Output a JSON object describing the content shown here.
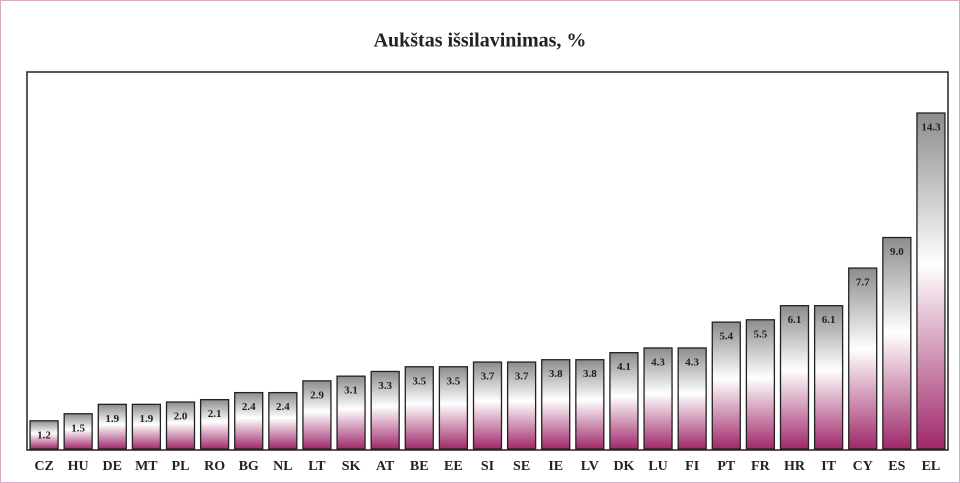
{
  "chart_data": {
    "type": "bar",
    "title": "Aukštas išsilavinimas, %",
    "categories": [
      "CZ",
      "HU",
      "DE",
      "MT",
      "PL",
      "RO",
      "BG",
      "NL",
      "LT",
      "SK",
      "AT",
      "BE",
      "EE",
      "SI",
      "SE",
      "IE",
      "LV",
      "DK",
      "LU",
      "FI",
      "PT",
      "FR",
      "HR",
      "IT",
      "CY",
      "ES",
      "EL"
    ],
    "values": [
      1.2,
      1.5,
      1.9,
      1.9,
      2.0,
      2.1,
      2.4,
      2.4,
      2.9,
      3.1,
      3.3,
      3.5,
      3.5,
      3.7,
      3.7,
      3.8,
      3.8,
      4.1,
      4.3,
      4.3,
      5.4,
      5.5,
      6.1,
      6.1,
      7.7,
      9.0,
      14.3
    ],
    "value_labels": [
      "1.2",
      "1.5",
      "1.9",
      "1.9",
      "2.0",
      "2.1",
      "2.4",
      "2.4",
      "2.9",
      "3.1",
      "3.3",
      "3.5",
      "3.5",
      "3.7",
      "3.7",
      "3.8",
      "3.8",
      "4.1",
      "4.3",
      "4.3",
      "5.4",
      "5.5",
      "6.1",
      "6.1",
      "7.7",
      "9.0",
      "14.3"
    ],
    "color": "#a0286a"
  }
}
